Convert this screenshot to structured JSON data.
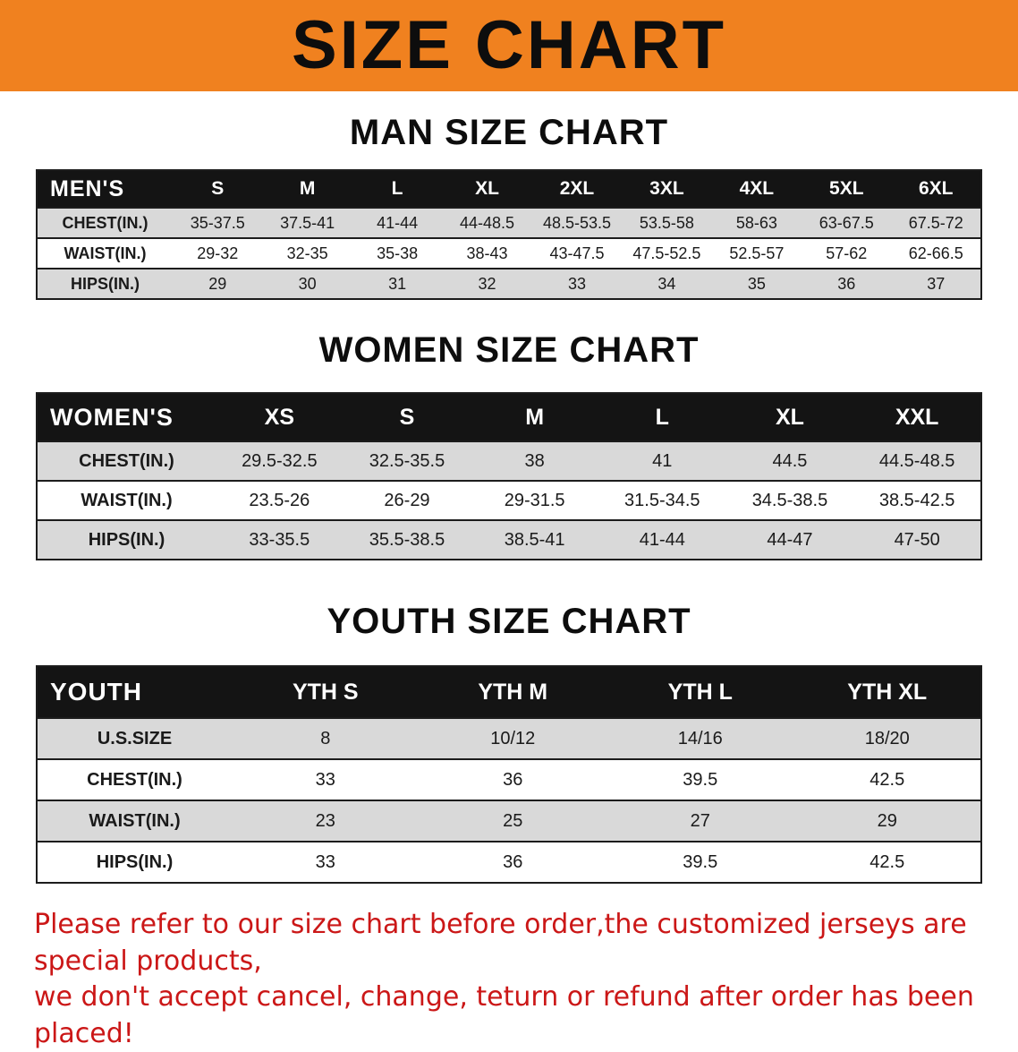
{
  "banner": {
    "title": "SIZE CHART",
    "bg_color": "#f0811f",
    "text_color": "#0d0d0d"
  },
  "headings": {
    "men": "MAN SIZE CHART",
    "women": "WOMEN SIZE CHART",
    "youth": "YOUTH SIZE CHART"
  },
  "tables": {
    "men": {
      "label": "MEN'S",
      "sizes": [
        "S",
        "M",
        "L",
        "XL",
        "2XL",
        "3XL",
        "4XL",
        "5XL",
        "6XL"
      ],
      "rows": [
        {
          "label": "CHEST(IN.)",
          "values": [
            "35-37.5",
            "37.5-41",
            "41-44",
            "44-48.5",
            "48.5-53.5",
            "53.5-58",
            "58-63",
            "63-67.5",
            "67.5-72"
          ]
        },
        {
          "label": "WAIST(IN.)",
          "values": [
            "29-32",
            "32-35",
            "35-38",
            "38-43",
            "43-47.5",
            "47.5-52.5",
            "52.5-57",
            "57-62",
            "62-66.5"
          ]
        },
        {
          "label": "HIPS(IN.)",
          "values": [
            "29",
            "30",
            "31",
            "32",
            "33",
            "34",
            "35",
            "36",
            "37"
          ]
        }
      ]
    },
    "women": {
      "label": "WOMEN'S",
      "sizes": [
        "XS",
        "S",
        "M",
        "L",
        "XL",
        "XXL"
      ],
      "rows": [
        {
          "label": "CHEST(IN.)",
          "values": [
            "29.5-32.5",
            "32.5-35.5",
            "38",
            "41",
            "44.5",
            "44.5-48.5"
          ]
        },
        {
          "label": "WAIST(IN.)",
          "values": [
            "23.5-26",
            "26-29",
            "29-31.5",
            "31.5-34.5",
            "34.5-38.5",
            "38.5-42.5"
          ]
        },
        {
          "label": "HIPS(IN.)",
          "values": [
            "33-35.5",
            "35.5-38.5",
            "38.5-41",
            "41-44",
            "44-47",
            "47-50"
          ]
        }
      ]
    },
    "youth": {
      "label": "YOUTH",
      "sizes": [
        "YTH S",
        "YTH M",
        "YTH L",
        "YTH XL"
      ],
      "rows": [
        {
          "label": "U.S.SIZE",
          "values": [
            "8",
            "10/12",
            "14/16",
            "18/20"
          ]
        },
        {
          "label": "CHEST(IN.)",
          "values": [
            "33",
            "36",
            "39.5",
            "42.5"
          ]
        },
        {
          "label": "WAIST(IN.)",
          "values": [
            "23",
            "25",
            "27",
            "29"
          ]
        },
        {
          "label": "HIPS(IN.)",
          "values": [
            "33",
            "36",
            "39.5",
            "42.5"
          ]
        }
      ]
    }
  },
  "note": {
    "line1": "Please refer to our size chart before order,the customized jerseys are special products,",
    "line2": "we don't accept cancel, change, teturn or refund after order has been placed!"
  }
}
